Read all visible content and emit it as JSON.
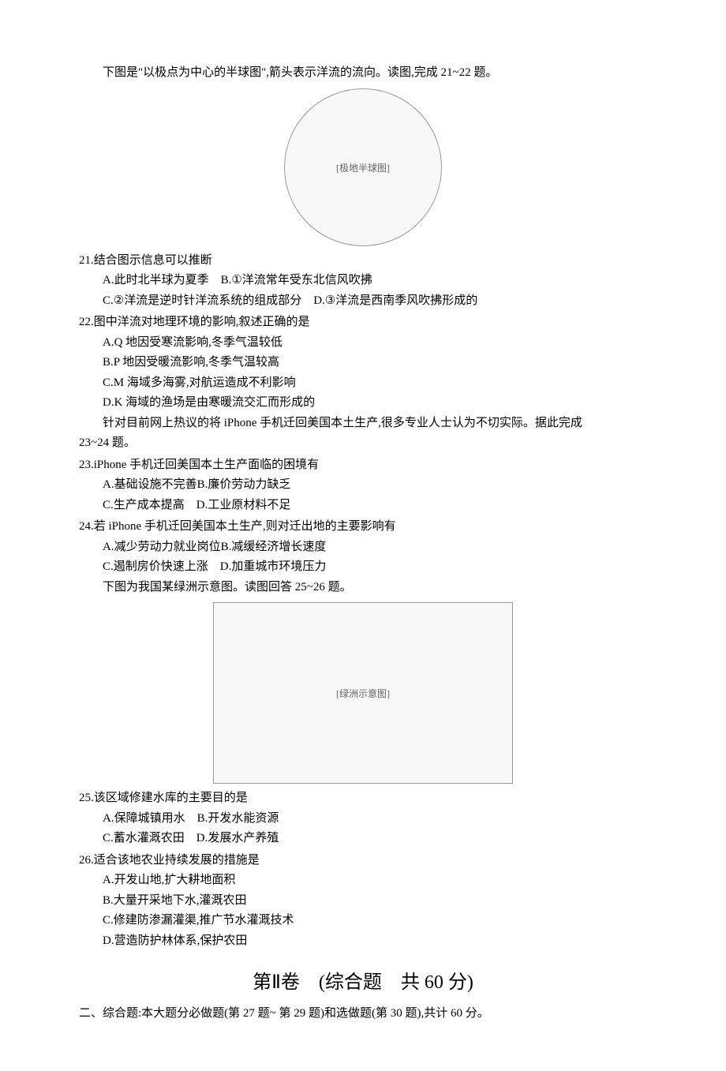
{
  "intro21": "下图是\"以极点为中心的半球图\",箭头表示洋流的流向。读图,完成 21~22 题。",
  "fig1_label": "[极地半球图]",
  "q21": {
    "stem": "21.结合图示信息可以推断",
    "line1": "A.此时北半球为夏季 B.①洋流常年受东北信风吹拂",
    "line2": "C.②洋流是逆时针洋流系统的组成部分 D.③洋流是西南季风吹拂形成的"
  },
  "q22": {
    "stem": "22.图中洋流对地理环境的影响,叙述正确的是",
    "optA": "A.Q 地因受寒流影响,冬季气温较低",
    "optB": "B.P 地因受暖流影响,冬季气温较高",
    "optC": "C.M 海域多海雾,对航运造成不利影响",
    "optD": "D.K 海域的渔场是由寒暖流交汇而形成的"
  },
  "intro23": "针对目前网上热议的将 iPhone 手机迁回美国本土生产,很多专业人士认为不切实际。据此完成",
  "intro23b": "23~24 题。",
  "q23": {
    "stem": "23.iPhone 手机迁回美国本土生产面临的困境有",
    "line1": "A.基础设施不完善B.廉价劳动力缺乏",
    "line2": "C.生产成本提高 D.工业原材料不足"
  },
  "q24": {
    "stem": "24.若 iPhone 手机迁回美国本土生产,则对迁出地的主要影响有",
    "line1": "A.减少劳动力就业岗位B.减缓经济增长速度",
    "line2": "C.遏制房价快速上涨 D.加重城市环境压力"
  },
  "intro25": "下图为我国某绿洲示意图。读图回答 25~26 题。",
  "fig2_label": "[绿洲示意图]",
  "q25": {
    "stem": "25.该区域修建水库的主要目的是",
    "line1": "A.保障城镇用水 B.开发水能资源",
    "line2": "C.蓄水灌溉农田 D.发展水产养殖"
  },
  "q26": {
    "stem": "26.适合该地农业持续发展的措施是",
    "optA": "A.开发山地,扩大耕地面积",
    "optB": "B.大量开采地下水,灌溉农田",
    "optC": "C.修建防渗漏灌渠,推广节水灌溉技术",
    "optD": "D.营造防护林体系,保护农田"
  },
  "section2": {
    "title": "第Ⅱ卷 (综合题 共 60 分)",
    "desc": "二、综合题:本大题分必做题(第 27 题~ 第 29 题)和选做题(第 30 题),共计 60 分。"
  }
}
